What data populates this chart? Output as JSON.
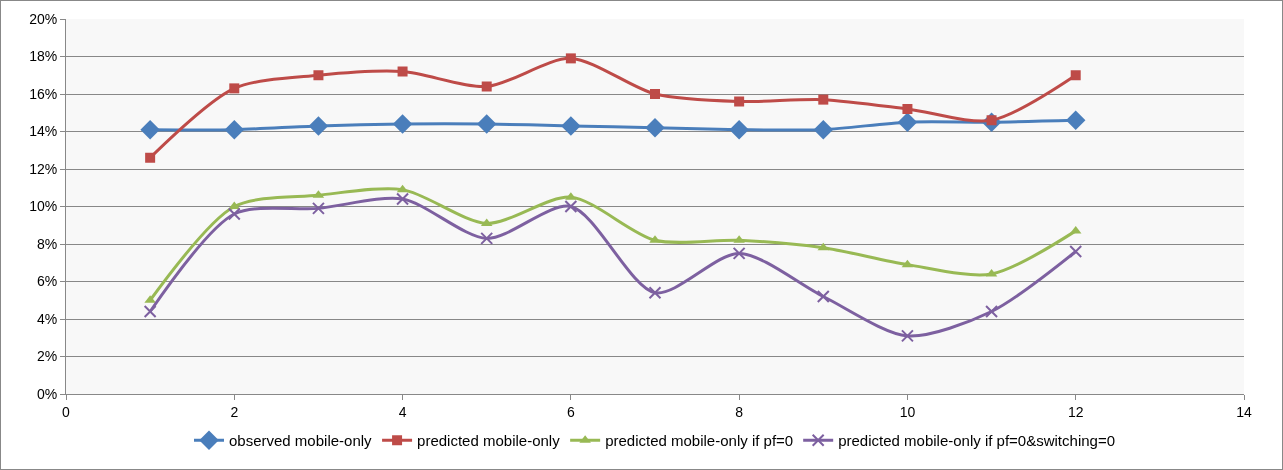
{
  "chart_data": {
    "type": "line",
    "x": [
      1,
      2,
      3,
      4,
      5,
      6,
      7,
      8,
      9,
      10,
      11,
      12
    ],
    "series": [
      {
        "name": "observed mobile-only",
        "color": "#4a7ebb",
        "marker": "diamond",
        "values": [
          14.1,
          14.1,
          14.3,
          14.4,
          14.4,
          14.3,
          14.2,
          14.1,
          14.1,
          14.5,
          14.5,
          14.6
        ]
      },
      {
        "name": "predicted mobile-only",
        "color": "#be4b48",
        "marker": "square",
        "values": [
          12.6,
          16.3,
          17.0,
          17.2,
          16.4,
          17.9,
          16.0,
          15.6,
          15.7,
          15.2,
          14.6,
          17.0
        ]
      },
      {
        "name": "predicted mobile-only if pf=0",
        "color": "#98b954",
        "marker": "triangle",
        "values": [
          5.0,
          10.0,
          10.6,
          10.9,
          9.1,
          10.5,
          8.2,
          8.2,
          7.8,
          6.9,
          6.4,
          8.7
        ]
      },
      {
        "name": "predicted mobile-only if pf=0&switching=0",
        "color": "#7d60a0",
        "marker": "cross",
        "values": [
          4.4,
          9.6,
          9.9,
          10.4,
          8.3,
          10.0,
          5.4,
          7.5,
          5.2,
          3.1,
          4.4,
          7.6
        ]
      }
    ],
    "xlim": [
      0,
      14
    ],
    "xticks": [
      0,
      2,
      4,
      6,
      8,
      10,
      12,
      14
    ],
    "ylim": [
      0,
      20
    ],
    "yticks": [
      {
        "value": 0,
        "label": "0%"
      },
      {
        "value": 2,
        "label": "2%"
      },
      {
        "value": 4,
        "label": "4%"
      },
      {
        "value": 6,
        "label": "6%"
      },
      {
        "value": 8,
        "label": "8%"
      },
      {
        "value": 10,
        "label": "10%"
      },
      {
        "value": 12,
        "label": "12%"
      },
      {
        "value": 14,
        "label": "14%"
      },
      {
        "value": 16,
        "label": "16%"
      },
      {
        "value": 18,
        "label": "18%"
      },
      {
        "value": 20,
        "label": "20%"
      }
    ],
    "grid": "y",
    "legend": "bottom",
    "line_style": "solid"
  }
}
